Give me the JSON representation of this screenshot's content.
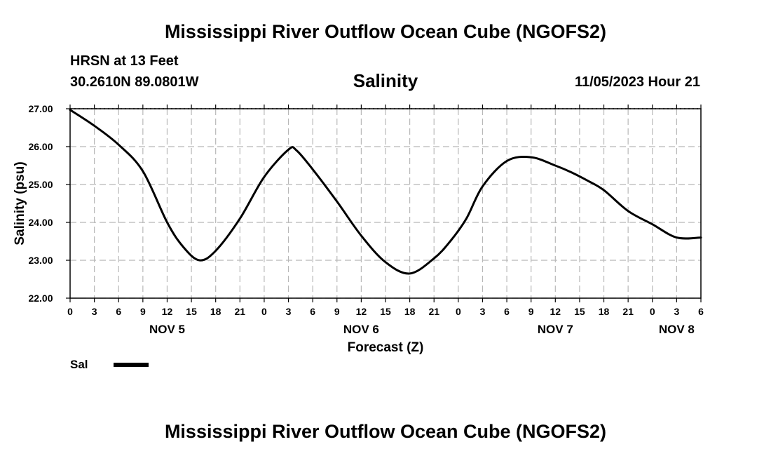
{
  "header": {
    "title": "Mississippi River Outflow Ocean Cube (NGOFS2)",
    "station": "HRSN at 13 Feet",
    "coords": "30.2610N  89.0801W",
    "parameter": "Salinity",
    "datetime": "11/05/2023 Hour 21"
  },
  "footer": {
    "title": "Mississippi River Outflow Ocean Cube (NGOFS2)"
  },
  "legend": {
    "label": "Sal"
  },
  "chart_data": {
    "type": "line",
    "title": "Salinity",
    "xlabel": "Forecast (Z)",
    "ylabel": "Salinity (psu)",
    "xlim": [
      0,
      78
    ],
    "ylim": [
      22.0,
      27.0
    ],
    "grid": true,
    "y_ticks": [
      "22.00",
      "23.00",
      "24.00",
      "25.00",
      "26.00",
      "27.00"
    ],
    "x_tick_labels": [
      "0",
      "3",
      "6",
      "9",
      "12",
      "15",
      "18",
      "21",
      "0",
      "3",
      "6",
      "9",
      "12",
      "15",
      "18",
      "21",
      "0",
      "3",
      "6",
      "9",
      "12",
      "15",
      "18",
      "21",
      "0",
      "3",
      "6"
    ],
    "day_labels": [
      {
        "label": "NOV 5",
        "hour": 12
      },
      {
        "label": "NOV 6",
        "hour": 36
      },
      {
        "label": "NOV 7",
        "hour": 60
      },
      {
        "label": "NOV 8",
        "hour": 75
      }
    ],
    "series": [
      {
        "name": "Sal",
        "color": "#000000",
        "x": [
          0,
          3,
          6,
          9,
          12,
          14,
          16,
          18,
          21,
          24,
          27,
          28,
          30,
          33,
          36,
          39,
          42,
          45,
          47,
          49,
          51,
          54,
          57,
          60,
          62,
          64,
          66,
          69,
          72,
          75,
          78
        ],
        "values": [
          26.97,
          26.55,
          26.05,
          25.35,
          24.0,
          23.35,
          23.0,
          23.25,
          24.1,
          25.2,
          25.92,
          25.9,
          25.4,
          24.55,
          23.65,
          22.95,
          22.65,
          23.05,
          23.5,
          24.1,
          24.95,
          25.62,
          25.72,
          25.5,
          25.32,
          25.1,
          24.85,
          24.3,
          23.95,
          23.6,
          23.6
        ]
      }
    ]
  }
}
